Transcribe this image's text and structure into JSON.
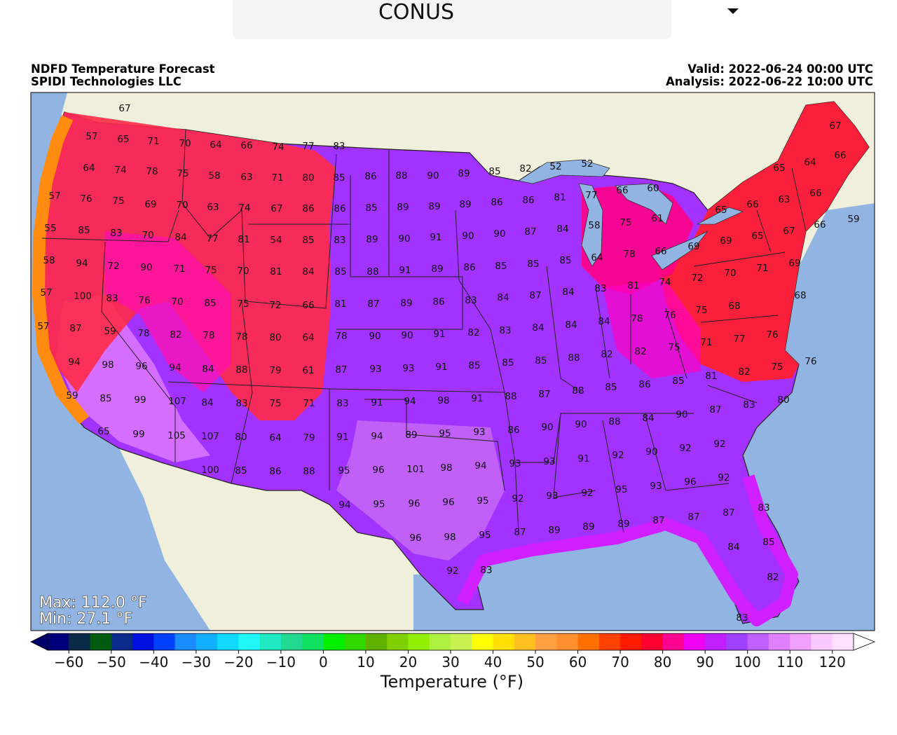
{
  "header": {
    "dropdown": "CONUS"
  },
  "map": {
    "title": "NDFD Temperature Forecast",
    "credit": "SPIDI Technologies LLC",
    "valid": "Valid: 2022-06-24 00:00 UTC",
    "analysis": "Analysis: 2022-06-22 10:00 UTC",
    "max_label": "Max: 112.0 °F",
    "min_label": "Min: 27.1 °F",
    "stations": [
      67,
      57,
      65,
      71,
      70,
      64,
      66,
      74,
      77,
      83,
      64,
      74,
      78,
      75,
      58,
      63,
      71,
      80,
      85,
      86,
      88,
      90,
      89,
      85,
      82,
      52,
      52,
      65,
      64,
      66,
      67,
      57,
      76,
      75,
      69,
      70,
      63,
      74,
      67,
      86,
      86,
      85,
      89,
      89,
      89,
      86,
      86,
      81,
      77,
      66,
      60,
      65,
      66,
      63,
      66,
      55,
      85,
      83,
      70,
      84,
      77,
      81,
      54,
      85,
      83,
      89,
      90,
      91,
      90,
      90,
      87,
      84,
      58,
      75,
      61,
      69,
      69,
      65,
      67,
      66,
      59,
      58,
      94,
      72,
      90,
      71,
      75,
      70,
      81,
      84,
      85,
      88,
      91,
      89,
      86,
      85,
      85,
      85,
      64,
      78,
      66,
      74,
      72,
      70,
      71,
      69,
      57,
      100,
      83,
      76,
      70,
      85,
      75,
      72,
      66,
      81,
      87,
      89,
      86,
      83,
      84,
      87,
      84,
      83,
      81,
      75,
      68,
      68,
      57,
      87,
      59,
      78,
      82,
      78,
      78,
      80,
      64,
      78,
      90,
      90,
      91,
      82,
      83,
      84,
      84,
      84,
      78,
      76,
      71,
      77,
      76,
      94,
      98,
      96,
      94,
      84,
      88,
      79,
      61,
      87,
      93,
      93,
      91,
      85,
      85,
      85,
      88,
      82,
      82,
      75,
      81,
      82,
      75,
      76,
      59,
      85,
      99,
      107,
      84,
      83,
      75,
      71,
      83,
      91,
      94,
      98,
      91,
      88,
      87,
      88,
      85,
      86,
      85,
      87,
      83,
      80,
      90,
      65,
      99,
      105,
      107,
      80,
      64,
      79,
      91,
      94,
      89,
      95,
      93,
      86,
      90,
      90,
      88,
      84,
      92,
      92,
      100,
      85,
      86,
      88,
      95,
      96,
      101,
      98,
      94,
      93,
      93,
      91,
      92,
      90,
      96,
      92,
      94,
      95,
      96,
      96,
      95,
      92,
      93,
      92,
      95,
      93,
      83,
      96,
      98,
      95,
      87,
      89,
      89,
      89,
      87,
      87,
      87,
      85,
      84,
      92,
      83,
      82,
      83
    ]
  },
  "colorbar": {
    "label": "Temperature (°F)",
    "lim": [
      -65,
      125
    ],
    "under_color": "#00006a",
    "over_color": "#ffffff",
    "colors": [
      "#00007a",
      "#0b2a48",
      "#005a10",
      "#0a2a8c",
      "#0010e0",
      "#0040ff",
      "#1a8cff",
      "#10b0ff",
      "#10d8ff",
      "#20f8f8",
      "#20e8c0",
      "#20d890",
      "#10e060",
      "#00f000",
      "#30d800",
      "#60b000",
      "#80d000",
      "#90f000",
      "#b0f040",
      "#c8f050",
      "#ffff00",
      "#ffe000",
      "#ffc020",
      "#ffa040",
      "#ff9030",
      "#ff7000",
      "#ff4000",
      "#ff1a00",
      "#ff0030",
      "#ff0090",
      "#f000f0",
      "#c020ff",
      "#a040ff",
      "#c060ff",
      "#e080ff",
      "#f0a0ff",
      "#f8c8ff",
      "#ffe0ff"
    ],
    "ticks": [
      {
        "value": -60,
        "label": "−60"
      },
      {
        "value": -50,
        "label": "−50"
      },
      {
        "value": -40,
        "label": "−40"
      },
      {
        "value": -30,
        "label": "−30"
      },
      {
        "value": -20,
        "label": "−20"
      },
      {
        "value": -10,
        "label": "−10"
      },
      0,
      10,
      20,
      30,
      40,
      50,
      60,
      70,
      80,
      90,
      100,
      110,
      120
    ]
  }
}
